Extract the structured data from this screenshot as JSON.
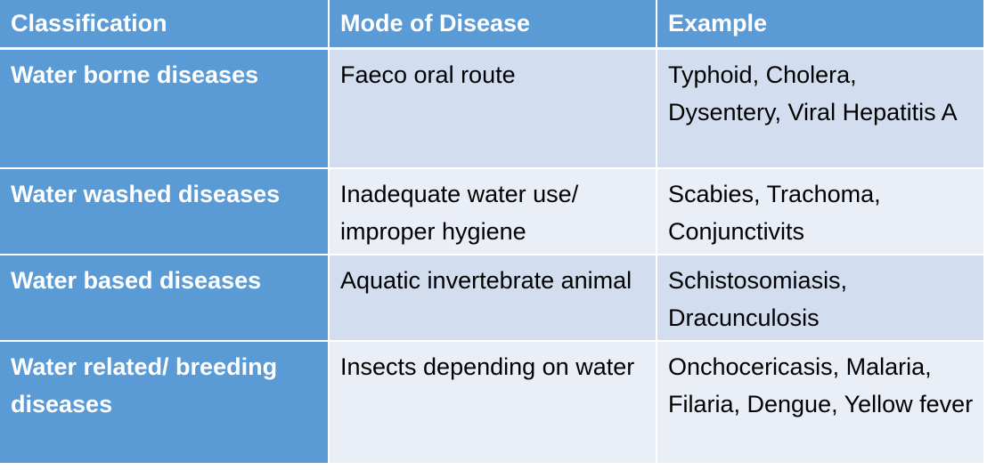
{
  "table": {
    "headers": [
      "Classification",
      "Mode of Disease",
      "Example"
    ],
    "rows": [
      {
        "classification": "Water borne diseases",
        "mode": "Faeco oral route",
        "example": "Typhoid, Cholera, Dysentery, Viral Hepatitis A"
      },
      {
        "classification": "Water washed diseases",
        "mode": "Inadequate water use/ improper hygiene",
        "example": "Scabies, Trachoma, Conjunctivits"
      },
      {
        "classification": "Water based diseases",
        "mode": "Aquatic invertebrate animal",
        "example": "Schistosomiasis, Dracunculosis"
      },
      {
        "classification": "Water related/ breeding diseases",
        "mode": "Insects depending on water",
        "example": "Onchocericasis, Malaria, Filaria,  Dengue, Yellow fever"
      }
    ]
  },
  "colors": {
    "header_bg": "#5b9bd5",
    "row_odd_bg": "#d2deef",
    "row_even_bg": "#eaeff7"
  }
}
